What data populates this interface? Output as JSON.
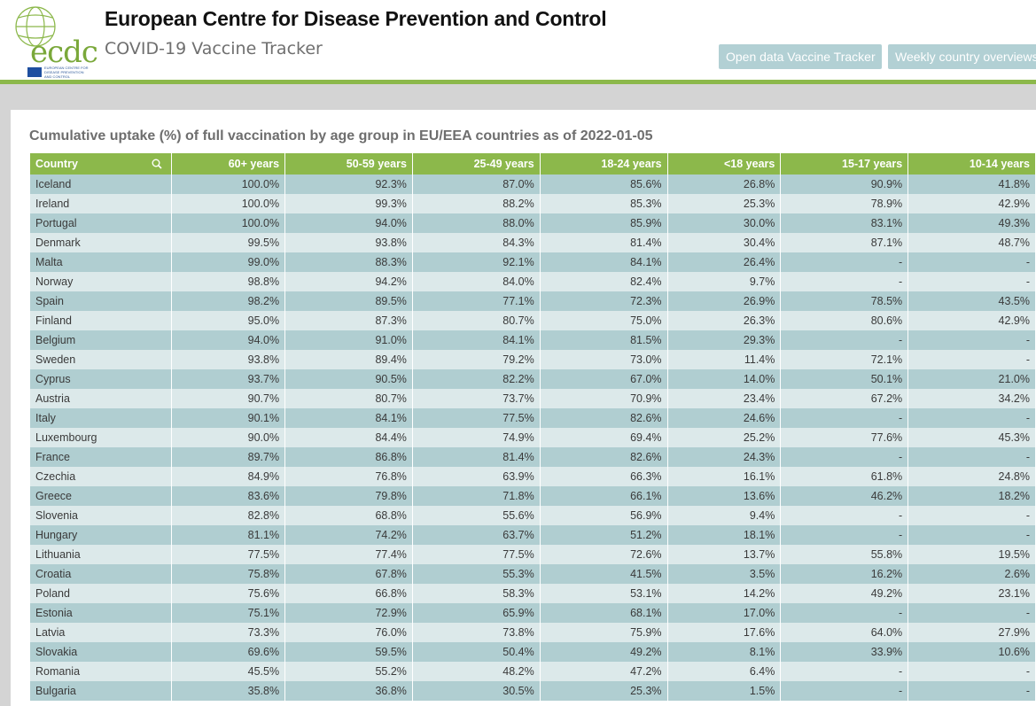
{
  "header": {
    "logo_text": "ecdc",
    "logo_subtext": "EUROPEAN CENTRE FOR\nDISEASE PREVENTION\nAND CONTROL",
    "org_title": "European Centre for Disease Prevention and Control",
    "app_title": "COVID-19 Vaccine Tracker",
    "buttons": {
      "open_data": "Open data Vaccine Tracker",
      "weekly": "Weekly country overviews"
    }
  },
  "colors": {
    "accent_green": "#8cb84b",
    "row_dark": "#b0ced1",
    "row_light": "#dce9ea",
    "button_bg": "#b2d0d4"
  },
  "table": {
    "caption": "Cumulative uptake (%) of full vaccination by age group in EU/EEA countries as of 2022-01-05",
    "headers": [
      "Country",
      "60+ years",
      "50-59 years",
      "25-49 years",
      "18-24 years",
      "<18 years",
      "15-17 years",
      "10-14 years"
    ],
    "rows": [
      [
        "Iceland",
        "100.0%",
        "92.3%",
        "87.0%",
        "85.6%",
        "26.8%",
        "90.9%",
        "41.8%"
      ],
      [
        "Ireland",
        "100.0%",
        "99.3%",
        "88.2%",
        "85.3%",
        "25.3%",
        "78.9%",
        "42.9%"
      ],
      [
        "Portugal",
        "100.0%",
        "94.0%",
        "88.0%",
        "85.9%",
        "30.0%",
        "83.1%",
        "49.3%"
      ],
      [
        "Denmark",
        "99.5%",
        "93.8%",
        "84.3%",
        "81.4%",
        "30.4%",
        "87.1%",
        "48.7%"
      ],
      [
        "Malta",
        "99.0%",
        "88.3%",
        "92.1%",
        "84.1%",
        "26.4%",
        "-",
        "-"
      ],
      [
        "Norway",
        "98.8%",
        "94.2%",
        "84.0%",
        "82.4%",
        "9.7%",
        "-",
        "-"
      ],
      [
        "Spain",
        "98.2%",
        "89.5%",
        "77.1%",
        "72.3%",
        "26.9%",
        "78.5%",
        "43.5%"
      ],
      [
        "Finland",
        "95.0%",
        "87.3%",
        "80.7%",
        "75.0%",
        "26.3%",
        "80.6%",
        "42.9%"
      ],
      [
        "Belgium",
        "94.0%",
        "91.0%",
        "84.1%",
        "81.5%",
        "29.3%",
        "-",
        "-"
      ],
      [
        "Sweden",
        "93.8%",
        "89.4%",
        "79.2%",
        "73.0%",
        "11.4%",
        "72.1%",
        "-"
      ],
      [
        "Cyprus",
        "93.7%",
        "90.5%",
        "82.2%",
        "67.0%",
        "14.0%",
        "50.1%",
        "21.0%"
      ],
      [
        "Austria",
        "90.7%",
        "80.7%",
        "73.7%",
        "70.9%",
        "23.4%",
        "67.2%",
        "34.2%"
      ],
      [
        "Italy",
        "90.1%",
        "84.1%",
        "77.5%",
        "82.6%",
        "24.6%",
        "-",
        "-"
      ],
      [
        "Luxembourg",
        "90.0%",
        "84.4%",
        "74.9%",
        "69.4%",
        "25.2%",
        "77.6%",
        "45.3%"
      ],
      [
        "France",
        "89.7%",
        "86.8%",
        "81.4%",
        "82.6%",
        "24.3%",
        "-",
        "-"
      ],
      [
        "Czechia",
        "84.9%",
        "76.8%",
        "63.9%",
        "66.3%",
        "16.1%",
        "61.8%",
        "24.8%"
      ],
      [
        "Greece",
        "83.6%",
        "79.8%",
        "71.8%",
        "66.1%",
        "13.6%",
        "46.2%",
        "18.2%"
      ],
      [
        "Slovenia",
        "82.8%",
        "68.8%",
        "55.6%",
        "56.9%",
        "9.4%",
        "-",
        "-"
      ],
      [
        "Hungary",
        "81.1%",
        "74.2%",
        "63.7%",
        "51.2%",
        "18.1%",
        "-",
        "-"
      ],
      [
        "Lithuania",
        "77.5%",
        "77.4%",
        "77.5%",
        "72.6%",
        "13.7%",
        "55.8%",
        "19.5%"
      ],
      [
        "Croatia",
        "75.8%",
        "67.8%",
        "55.3%",
        "41.5%",
        "3.5%",
        "16.2%",
        "2.6%"
      ],
      [
        "Poland",
        "75.6%",
        "66.8%",
        "58.3%",
        "53.1%",
        "14.2%",
        "49.2%",
        "23.1%"
      ],
      [
        "Estonia",
        "75.1%",
        "72.9%",
        "65.9%",
        "68.1%",
        "17.0%",
        "-",
        "-"
      ],
      [
        "Latvia",
        "73.3%",
        "76.0%",
        "73.8%",
        "75.9%",
        "17.6%",
        "64.0%",
        "27.9%"
      ],
      [
        "Slovakia",
        "69.6%",
        "59.5%",
        "50.4%",
        "49.2%",
        "8.1%",
        "33.9%",
        "10.6%"
      ],
      [
        "Romania",
        "45.5%",
        "55.2%",
        "48.2%",
        "47.2%",
        "6.4%",
        "-",
        "-"
      ],
      [
        "Bulgaria",
        "35.8%",
        "36.8%",
        "30.5%",
        "25.3%",
        "1.5%",
        "-",
        "-"
      ]
    ]
  }
}
